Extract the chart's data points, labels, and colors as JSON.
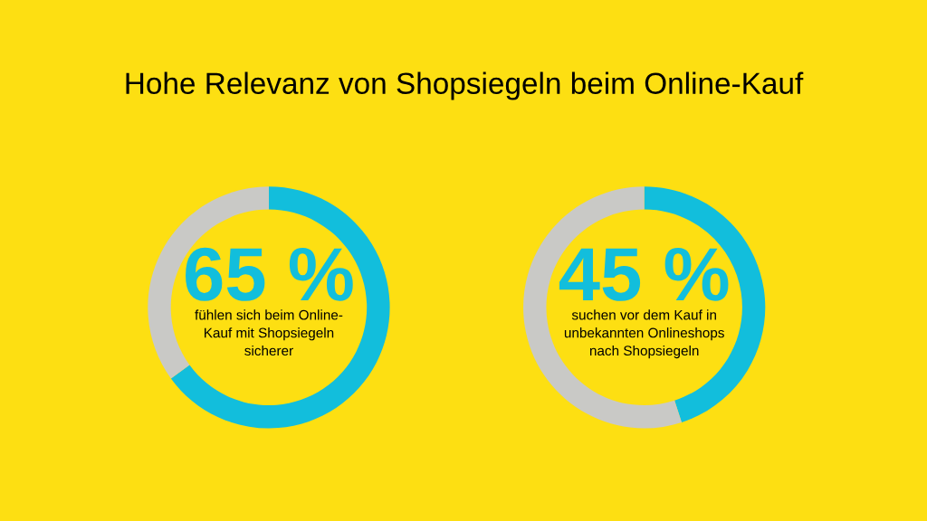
{
  "chart_data": [
    {
      "type": "donut",
      "title": "Hohe Relevanz von Shopsiegeln beim Online-Kauf",
      "categories": [
        null,
        null
      ],
      "values": [
        65,
        35
      ],
      "colors": [
        "#12bedc",
        "#c9c9c6"
      ],
      "value_labels": [
        "65 %",
        null
      ],
      "annotations": [
        "fühlen sich beim Online-\nKauf mit Shopsiegeln\nsicherer"
      ]
    },
    {
      "type": "donut",
      "categories": [
        null,
        null
      ],
      "values": [
        45,
        55
      ],
      "colors": [
        "#12bedc",
        "#c9c9c6"
      ],
      "value_labels": [
        "45 %",
        null
      ],
      "annotations": [
        "suchen vor dem Kauf in\nunbekannten Onlineshops\nnach Shopsiegeln"
      ]
    }
  ]
}
